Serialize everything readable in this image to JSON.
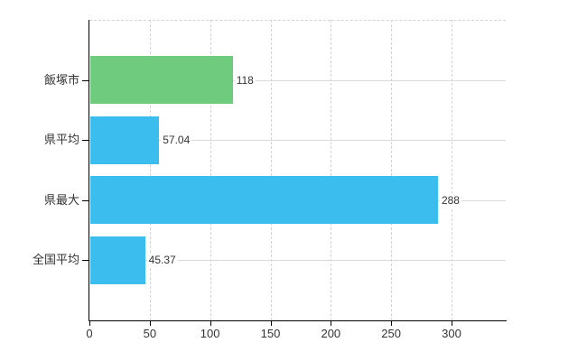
{
  "chart_data": {
    "type": "bar",
    "orientation": "horizontal",
    "title": "",
    "xlabel": "",
    "ylabel": "",
    "categories": [
      "飯塚市",
      "県平均",
      "県最大",
      "全国平均"
    ],
    "values": [
      118,
      57.04,
      288,
      45.37
    ],
    "value_labels": [
      "118",
      "57.04",
      "288",
      "45.37"
    ],
    "bar_colors": [
      "#6fcb7d",
      "#3bbdee",
      "#3bbdee",
      "#3bbdee"
    ],
    "x_ticks": [
      0,
      50,
      100,
      150,
      200,
      250,
      300
    ],
    "xlim": [
      0,
      345
    ],
    "grid": true,
    "legend": false,
    "colors": {
      "bar_green": "#6fcb7d",
      "bar_blue": "#3bbdee",
      "grid_line": "#d9d9d9",
      "axis_line": "#000000",
      "text": "#333333",
      "background": "#ffffff"
    }
  }
}
